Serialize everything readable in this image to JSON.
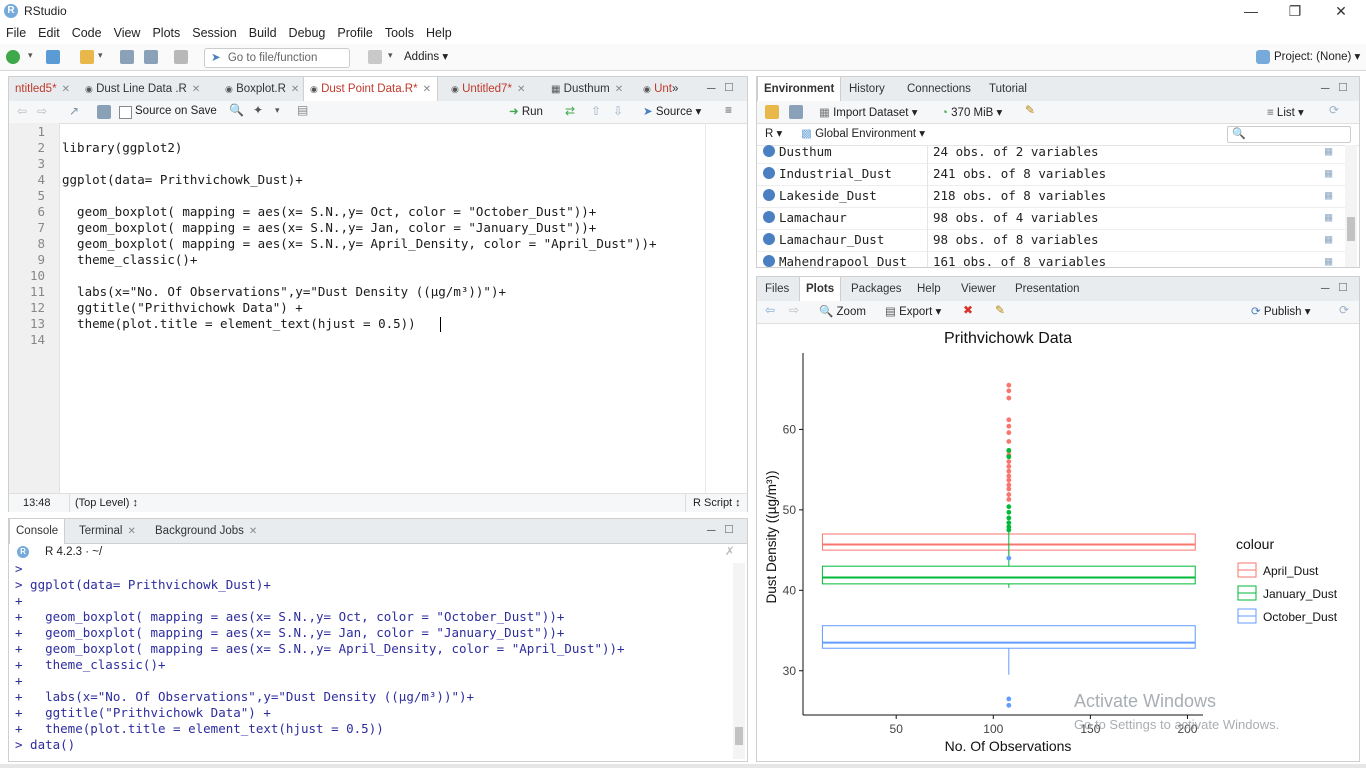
{
  "app": {
    "title": "RStudio"
  },
  "menu": [
    "File",
    "Edit",
    "Code",
    "View",
    "Plots",
    "Session",
    "Build",
    "Debug",
    "Profile",
    "Tools",
    "Help"
  ],
  "toolbar": {
    "goto_placeholder": "Go to file/function",
    "addins": "Addins",
    "project": "Project: (None)"
  },
  "editor": {
    "tabs": [
      {
        "label": "ntitled5*"
      },
      {
        "label": "Dust Line Data .R"
      },
      {
        "label": "Boxplot.R"
      },
      {
        "label": "Dust Point Data.R*"
      },
      {
        "label": "Untitled7*"
      },
      {
        "label": "Dusthum"
      },
      {
        "label": "Unt"
      }
    ],
    "source_on_save": "Source on Save",
    "run": "Run",
    "source": "Source",
    "line_numbers": [
      "1",
      "2",
      "3",
      "4",
      "5",
      "6",
      "7",
      "8",
      "9",
      "10",
      "11",
      "12",
      "13",
      "14"
    ],
    "lines": [
      "",
      "library(ggplot2)",
      "",
      "ggplot(data= Prithvichowk_Dust)+",
      "",
      "  geom_boxplot( mapping = aes(x= S.N.,y= Oct, color = \"October_Dust\"))+",
      "  geom_boxplot( mapping = aes(x= S.N.,y= Jan, color = \"January_Dust\"))+",
      "  geom_boxplot( mapping = aes(x= S.N.,y= April_Density, color = \"April_Dust\"))+",
      "  theme_classic()+",
      "",
      "  labs(x=\"No. Of Observations\",y=\"Dust Density ((µg/m³))\")+",
      "  ggtitle(\"Prithvichowk Data\") +",
      "  theme(plot.title = element_text(hjust = 0.5))",
      ""
    ],
    "status_pos": "13:48",
    "status_level": "(Top Level)",
    "status_type": "R Script"
  },
  "console": {
    "tabs": [
      "Console",
      "Terminal",
      "Background Jobs"
    ],
    "version": "R 4.2.3 · ~/",
    "lines": [
      ">",
      "> ggplot(data= Prithvichowk_Dust)+",
      "+",
      "+   geom_boxplot( mapping = aes(x= S.N.,y= Oct, color = \"October_Dust\"))+",
      "+   geom_boxplot( mapping = aes(x= S.N.,y= Jan, color = \"January_Dust\"))+",
      "+   geom_boxplot( mapping = aes(x= S.N.,y= April_Density, color = \"April_Dust\"))+",
      "+   theme_classic()+",
      "+",
      "+   labs(x=\"No. Of Observations\",y=\"Dust Density ((µg/m³))\")+",
      "+   ggtitle(\"Prithvichowk Data\") +",
      "+   theme(plot.title = element_text(hjust = 0.5))",
      "> data()"
    ]
  },
  "environment": {
    "tabs": [
      "Environment",
      "History",
      "Connections",
      "Tutorial"
    ],
    "import": "Import Dataset",
    "memory": "370 MiB",
    "list": "List",
    "lang": "R",
    "scope": "Global Environment",
    "rows": [
      {
        "name": "Dusthum",
        "value": "24 obs. of 2 variables"
      },
      {
        "name": "Industrial_Dust",
        "value": "241 obs. of 8 variables"
      },
      {
        "name": "Lakeside_Dust",
        "value": "218 obs. of 8 variables"
      },
      {
        "name": "Lamachaur",
        "value": "98 obs. of 4 variables"
      },
      {
        "name": "Lamachaur_Dust",
        "value": "98 obs. of 8 variables"
      },
      {
        "name": "Mahendrapool_Dust",
        "value": "161 obs. of 8 variables"
      }
    ]
  },
  "plots_pane": {
    "tabs": [
      "Files",
      "Plots",
      "Packages",
      "Help",
      "Viewer",
      "Presentation"
    ],
    "zoom": "Zoom",
    "export": "Export",
    "publish": "Publish"
  },
  "watermark": {
    "line1": "Activate Windows",
    "line2": "Go to Settings to activate Windows."
  },
  "chart_data": {
    "type": "boxplot",
    "title": "Prithvichowk Data",
    "xlabel": "No. Of Observations",
    "ylabel": "Dust Density ((µg/m³))",
    "xlim": [
      2,
      208
    ],
    "ylim": [
      24.5,
      69.5
    ],
    "xticks": [
      50,
      100,
      150,
      200
    ],
    "yticks": [
      30,
      40,
      50,
      60
    ],
    "legend_title": "colour",
    "legend_position": "right",
    "series": [
      {
        "name": "April_Dust",
        "color": "#F8766D",
        "x_center": 108,
        "x_range": [
          12,
          204
        ],
        "q1": 45.0,
        "median": 45.7,
        "q3": 47.0,
        "whisker_low": 44.3,
        "whisker_high": 47.5,
        "outliers": [
          65.5,
          64.8,
          63.9,
          61.2,
          60.4,
          59.6,
          58.5,
          57.3,
          56.8,
          56.0,
          55.4,
          54.8,
          54.2,
          53.7,
          53.1,
          52.6,
          51.9,
          51.3
        ]
      },
      {
        "name": "January_Dust",
        "color": "#00BA38",
        "x_center": 108,
        "x_range": [
          12,
          204
        ],
        "q1": 40.8,
        "median": 41.6,
        "q3": 43.0,
        "whisker_low": 40.3,
        "whisker_high": 47.4,
        "outliers": [
          57.4,
          56.6,
          50.4,
          49.7,
          49.0,
          48.4,
          47.9,
          47.5
        ]
      },
      {
        "name": "October_Dust",
        "color": "#619CFF",
        "x_center": 108,
        "x_range": [
          12,
          204
        ],
        "q1": 32.8,
        "median": 33.5,
        "q3": 35.6,
        "whisker_low": 29.5,
        "whisker_high": 35.6,
        "outliers": [
          26.5,
          25.7,
          44.0
        ]
      }
    ]
  }
}
